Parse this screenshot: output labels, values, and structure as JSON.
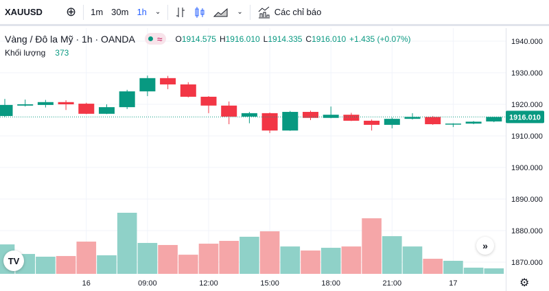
{
  "toolbar": {
    "symbol": "XAUUSD",
    "add_icon": "plus-circle-icon",
    "intervals": [
      "1m",
      "30m",
      "1h"
    ],
    "active_interval": "1h",
    "indicators_label": "Các chỉ báo"
  },
  "legend": {
    "title": "Vàng / Đô la Mỹ · 1h · OANDA",
    "open_label": "O",
    "open": "1914.575",
    "high_label": "H",
    "high": "1916.010",
    "low_label": "L",
    "low": "1914.335",
    "close_label": "C",
    "close": "1916.010",
    "change": "+1.435 (+0.07%)"
  },
  "volume_legend": {
    "label": "Khối lượng",
    "value": "373"
  },
  "colors": {
    "up": "#089981",
    "down": "#f23645",
    "up_volume": "#8fd1c8",
    "down_volume": "#f5a6a8",
    "grid": "#f0f3fa"
  },
  "chart_data": {
    "type": "candlestick",
    "y_ticks": [
      "1940.000",
      "1930.000",
      "1920.000",
      "1910.000",
      "1900.000",
      "1890.000",
      "1880.000",
      "1870.000"
    ],
    "ylim": [
      1866,
      1944
    ],
    "x_ticks": [
      {
        "index": 4,
        "label": "16"
      },
      {
        "index": 7,
        "label": "09:00"
      },
      {
        "index": 10,
        "label": "12:00"
      },
      {
        "index": 13,
        "label": "15:00"
      },
      {
        "index": 16,
        "label": "18:00"
      },
      {
        "index": 19,
        "label": "21:00"
      },
      {
        "index": 22,
        "label": "17"
      }
    ],
    "last_price": "1916.010",
    "candles": [
      {
        "o": 1916.3,
        "h": 1921.7,
        "l": 1916.0,
        "c": 1919.8,
        "v": 2000
      },
      {
        "o": 1919.6,
        "h": 1921.5,
        "l": 1919.3,
        "c": 1920.0,
        "v": 1350
      },
      {
        "o": 1919.8,
        "h": 1921.4,
        "l": 1919.0,
        "c": 1920.7,
        "v": 1165
      },
      {
        "o": 1920.7,
        "h": 1921.3,
        "l": 1918.2,
        "c": 1920.0,
        "v": 1210
      },
      {
        "o": 1920.2,
        "h": 1920.5,
        "l": 1916.9,
        "c": 1917.0,
        "v": 2190
      },
      {
        "o": 1917.0,
        "h": 1920.0,
        "l": 1916.9,
        "c": 1919.1,
        "v": 1260
      },
      {
        "o": 1919.1,
        "h": 1924.6,
        "l": 1918.5,
        "c": 1924.1,
        "v": 4150
      },
      {
        "o": 1924.1,
        "h": 1929.1,
        "l": 1922.6,
        "c": 1928.3,
        "v": 2100
      },
      {
        "o": 1928.3,
        "h": 1929.0,
        "l": 1924.8,
        "c": 1926.3,
        "v": 1960
      },
      {
        "o": 1926.3,
        "h": 1927.0,
        "l": 1922.2,
        "c": 1922.4,
        "v": 1300
      },
      {
        "o": 1922.4,
        "h": 1922.6,
        "l": 1917.2,
        "c": 1919.6,
        "v": 2050
      },
      {
        "o": 1919.6,
        "h": 1920.9,
        "l": 1913.7,
        "c": 1916.1,
        "v": 2240
      },
      {
        "o": 1916.1,
        "h": 1917.6,
        "l": 1914.0,
        "c": 1917.2,
        "v": 2520
      },
      {
        "o": 1917.2,
        "h": 1917.4,
        "l": 1910.9,
        "c": 1911.7,
        "v": 2890
      },
      {
        "o": 1911.7,
        "h": 1917.9,
        "l": 1911.6,
        "c": 1917.6,
        "v": 1860
      },
      {
        "o": 1917.6,
        "h": 1918.0,
        "l": 1915.0,
        "c": 1915.7,
        "v": 1585
      },
      {
        "o": 1915.7,
        "h": 1919.3,
        "l": 1915.6,
        "c": 1916.7,
        "v": 1770
      },
      {
        "o": 1916.7,
        "h": 1917.3,
        "l": 1914.7,
        "c": 1914.8,
        "v": 1860
      },
      {
        "o": 1914.8,
        "h": 1915.2,
        "l": 1911.7,
        "c": 1913.5,
        "v": 3775
      },
      {
        "o": 1913.5,
        "h": 1915.8,
        "l": 1912.4,
        "c": 1915.4,
        "v": 2560
      },
      {
        "o": 1915.4,
        "h": 1917.2,
        "l": 1915.2,
        "c": 1916.0,
        "v": 1860
      },
      {
        "o": 1916.0,
        "h": 1916.3,
        "l": 1913.5,
        "c": 1913.7,
        "v": 1025
      },
      {
        "o": 1913.7,
        "h": 1914.0,
        "l": 1912.8,
        "c": 1913.9,
        "v": 885
      },
      {
        "o": 1913.9,
        "h": 1914.7,
        "l": 1913.7,
        "c": 1914.5,
        "v": 420
      },
      {
        "o": 1914.575,
        "h": 1916.01,
        "l": 1914.335,
        "c": 1916.01,
        "v": 373
      }
    ]
  }
}
